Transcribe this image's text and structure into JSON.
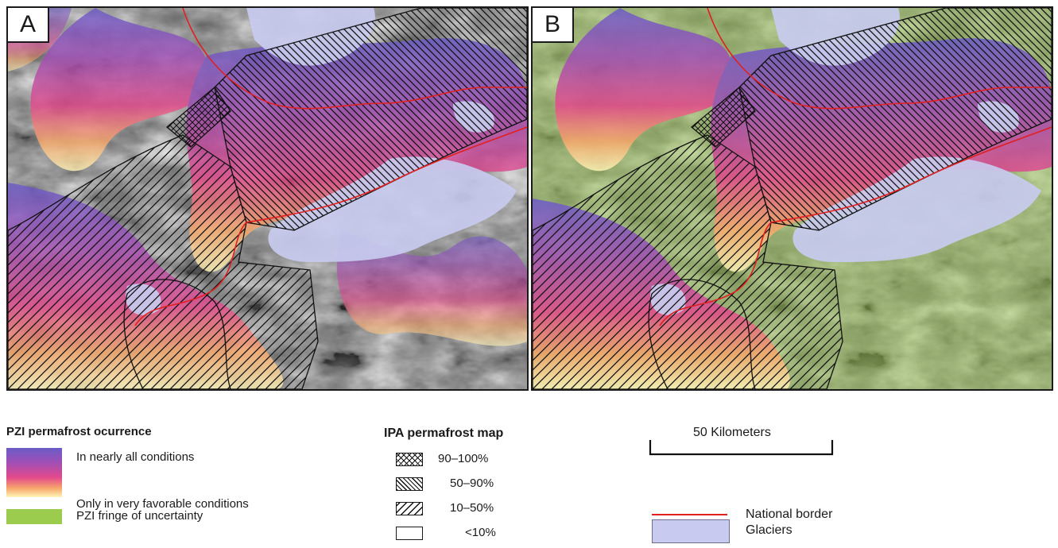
{
  "panels": [
    {
      "id": "A",
      "label": "A"
    },
    {
      "id": "B",
      "label": "B"
    }
  ],
  "legend_pzi": {
    "title": "PZI permafrost ocurrence",
    "high": "In nearly all conditions",
    "low": "Only in very favorable conditions",
    "fringe": "PZI fringe of uncertainty",
    "gradient_colors": [
      "#6b5cc8",
      "#a04fb5",
      "#e44a8c",
      "#f7a86b",
      "#fff5b8"
    ],
    "fringe_color": "#9ccc4e"
  },
  "legend_ipa": {
    "title": "IPA permafrost map",
    "classes": [
      {
        "label": "90–100%",
        "pattern": "cross-hatch"
      },
      {
        "label": "50–90%",
        "pattern": "dense-back-diagonal"
      },
      {
        "label": "10–50%",
        "pattern": "sparse-forward-diagonal"
      },
      {
        "label": "<10%",
        "pattern": "blank"
      }
    ]
  },
  "scale": {
    "label": "50 Kilometers"
  },
  "legend_other": {
    "border": {
      "label": "National border",
      "color": "#e02020"
    },
    "glaciers": {
      "label": "Glaciers",
      "color": "#c8cbef"
    }
  }
}
